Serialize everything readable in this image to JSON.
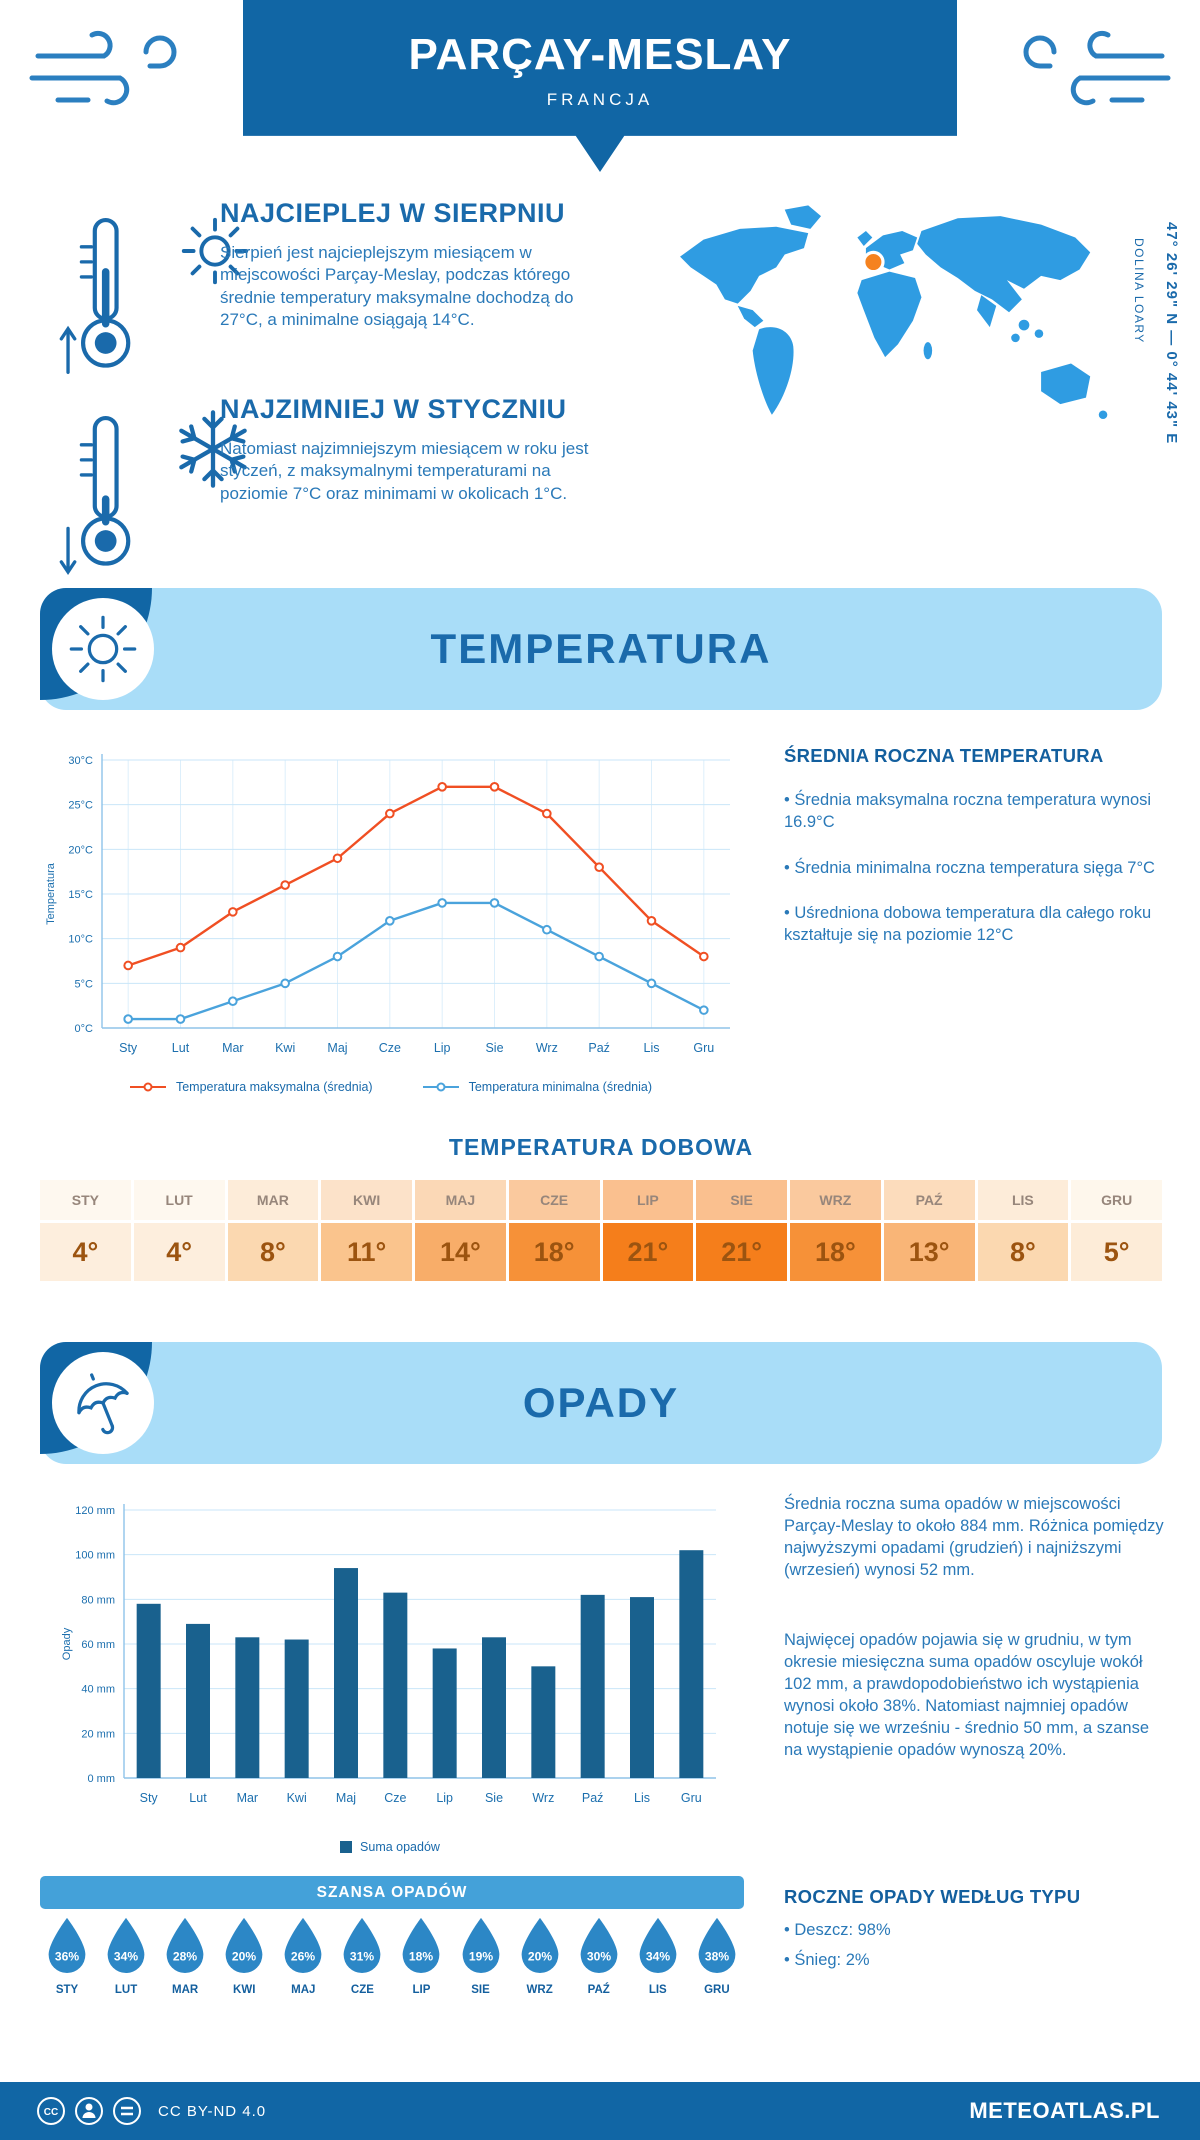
{
  "header": {
    "title": "PARÇAY-MESLAY",
    "subtitle": "FRANCJA"
  },
  "location": {
    "coordinates": "47° 26' 29\" N — 0° 44' 43\" E",
    "region": "DOLINA LOARY"
  },
  "warmest": {
    "title": "NAJCIEPLEJ W SIERPNIU",
    "text": "Sierpień jest najcieplejszym miesiącem w miejscowości Parçay-Meslay, podczas którego średnie temperatury maksymalne dochodzą do 27°C, a minimalne osiągają 14°C."
  },
  "coldest": {
    "title": "NAJZIMNIEJ W STYCZNIU",
    "text": "Natomiast najzimniejszym miesiącem w roku jest styczeń, z maksymalnymi temperaturami na poziomie 7°C oraz minimami w okolicach 1°C."
  },
  "months": {
    "short": [
      "Sty",
      "Lut",
      "Mar",
      "Kwi",
      "Maj",
      "Cze",
      "Lip",
      "Sie",
      "Wrz",
      "Paź",
      "Lis",
      "Gru"
    ],
    "upper": [
      "STY",
      "LUT",
      "MAR",
      "KWI",
      "MAJ",
      "CZE",
      "LIP",
      "SIE",
      "WRZ",
      "PAŹ",
      "LIS",
      "GRU"
    ]
  },
  "temperature_section": {
    "title": "TEMPERATURA",
    "summary_title": "ŚREDNIA ROCZNA TEMPERATURA",
    "bullets": [
      "• Średnia maksymalna roczna temperatura wynosi 16.9°C",
      "• Średnia minimalna roczna temperatura sięga 7°C",
      "• Uśredniona dobowa temperatura dla całego roku kształtuje się na poziomie 12°C"
    ],
    "daily_title": "TEMPERATURA DOBOWA"
  },
  "daily": {
    "values": [
      "4°",
      "4°",
      "8°",
      "11°",
      "14°",
      "18°",
      "21°",
      "21°",
      "18°",
      "13°",
      "8°",
      "5°"
    ],
    "value_colors": [
      "#fdeedd",
      "#fdeedd",
      "#fbd8b0",
      "#fac48d",
      "#f8ad69",
      "#f69138",
      "#f57e1b",
      "#f57e1b",
      "#f69138",
      "#f9b577",
      "#fbd8b0",
      "#fdecd8"
    ],
    "header_colors": [
      "#fef8ef",
      "#fef8ef",
      "#fdecd9",
      "#fce2c9",
      "#fbd8b6",
      "#fac99e",
      "#fac08f",
      "#fac08f",
      "#fac99e",
      "#fcdcbc",
      "#fdecd9",
      "#fef7ec"
    ]
  },
  "chart_data": [
    {
      "type": "line",
      "title": "TEMPERATURA",
      "categories": [
        "Sty",
        "Lut",
        "Mar",
        "Kwi",
        "Maj",
        "Cze",
        "Lip",
        "Sie",
        "Wrz",
        "Paź",
        "Lis",
        "Gru"
      ],
      "series": [
        {
          "name": "Temperatura maksymalna (średnia)",
          "color": "#f04f23",
          "values": [
            7,
            9,
            13,
            16,
            19,
            24,
            27,
            27,
            24,
            18,
            12,
            8
          ]
        },
        {
          "name": "Temperatura minimalna (średnia)",
          "color": "#4aa3dc",
          "values": [
            1,
            1,
            3,
            5,
            8,
            12,
            14,
            14,
            11,
            8,
            5,
            2
          ]
        }
      ],
      "xlabel": "",
      "ylabel": "Temperatura",
      "ylim": [
        0,
        30
      ],
      "ystep": 5,
      "unit": "°C",
      "grid": true,
      "legend_position": "bottom"
    },
    {
      "type": "bar",
      "title": "OPADY",
      "categories": [
        "Sty",
        "Lut",
        "Mar",
        "Kwi",
        "Maj",
        "Cze",
        "Lip",
        "Sie",
        "Wrz",
        "Paź",
        "Lis",
        "Gru"
      ],
      "series": [
        {
          "name": "Suma opadów",
          "color": "#19618e",
          "values": [
            78,
            69,
            63,
            62,
            94,
            83,
            58,
            63,
            50,
            82,
            81,
            102
          ]
        }
      ],
      "xlabel": "",
      "ylabel": "Opady",
      "ylim": [
        0,
        120
      ],
      "ystep": 20,
      "unit": " mm",
      "grid": true,
      "legend_position": "bottom"
    }
  ],
  "precipitation_section": {
    "title": "OPADY",
    "paragraphs": [
      "Średnia roczna suma opadów w miejscowości Parçay-Meslay to około 884 mm. Różnica pomiędzy najwyższymi opadami (grudzień) i najniższymi (wrzesień) wynosi 52 mm.",
      "Najwięcej opadów pojawia się w grudniu, w tym okresie miesięczna suma opadów oscyluje wokół 102 mm, a prawdopodobieństwo ich wystąpienia wynosi około 38%. Natomiast najmniej opadów notuje się we wrześniu - średnio 50 mm, a szanse na wystąpienie opadów wynoszą 20%."
    ],
    "legend": "Suma opadów",
    "chance_title": "SZANSA OPADÓW",
    "chance_values": [
      "36%",
      "34%",
      "28%",
      "20%",
      "26%",
      "31%",
      "18%",
      "19%",
      "20%",
      "30%",
      "34%",
      "38%"
    ],
    "type_title": "ROCZNE OPADY WEDŁUG TYPU",
    "type_bullets": [
      "• Deszcz: 98%",
      "• Śnieg: 2%"
    ]
  },
  "colors": {
    "brand_dark": "#1166a5",
    "banner_light": "#a9ddf8",
    "heading": "#1a6aab",
    "body": "#2a79b8",
    "map": "#2f9ce2",
    "accent_orange": "#f5821f",
    "line_max": "#f04f23",
    "line_min": "#4aa3dc",
    "bar": "#19618e",
    "drop": "#2c87c6",
    "chance_bar": "#44a1d9"
  },
  "footer": {
    "license": "CC BY-ND 4.0",
    "site": "METEOATLAS.PL"
  }
}
